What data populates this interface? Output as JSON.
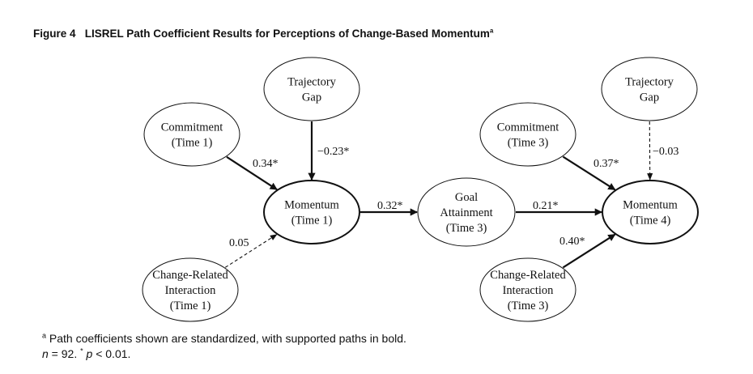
{
  "figure": {
    "label": "Figure 4",
    "title": "LISREL Path Coefficient Results for Perceptions of Change-Based Momentum",
    "title_marker": "a"
  },
  "nodes": [
    {
      "id": "trajectory-gap-1",
      "lines": [
        "Trajectory",
        "Gap"
      ]
    },
    {
      "id": "commitment-time-1",
      "lines": [
        "Commitment",
        "(Time 1)"
      ]
    },
    {
      "id": "momentum-time-1",
      "lines": [
        "Momentum",
        "(Time 1)"
      ]
    },
    {
      "id": "change-interaction-time-1",
      "lines": [
        "Change-Related",
        "Interaction",
        "(Time 1)"
      ]
    },
    {
      "id": "goal-attainment-time-3",
      "lines": [
        "Goal",
        "Attainment",
        "(Time 3)"
      ]
    },
    {
      "id": "trajectory-gap-2",
      "lines": [
        "Trajectory",
        "Gap"
      ]
    },
    {
      "id": "commitment-time-3",
      "lines": [
        "Commitment",
        "(Time 3)"
      ]
    },
    {
      "id": "momentum-time-4",
      "lines": [
        "Momentum",
        "(Time 4)"
      ]
    },
    {
      "id": "change-interaction-time-3",
      "lines": [
        "Change-Related",
        "Interaction",
        "(Time 3)"
      ]
    }
  ],
  "paths": [
    {
      "from": "commitment-time-1",
      "to": "momentum-time-1",
      "coefficient": "0.34*",
      "style": "bold"
    },
    {
      "from": "trajectory-gap-1",
      "to": "momentum-time-1",
      "coefficient": "−0.23*",
      "style": "bold"
    },
    {
      "from": "change-interaction-time-1",
      "to": "momentum-time-1",
      "coefficient": "0.05",
      "style": "dashed"
    },
    {
      "from": "momentum-time-1",
      "to": "goal-attainment-time-3",
      "coefficient": "0.32*",
      "style": "bold"
    },
    {
      "from": "goal-attainment-time-3",
      "to": "momentum-time-4",
      "coefficient": "0.21*",
      "style": "bold"
    },
    {
      "from": "commitment-time-3",
      "to": "momentum-time-4",
      "coefficient": "0.37*",
      "style": "bold"
    },
    {
      "from": "trajectory-gap-2",
      "to": "momentum-time-4",
      "coefficient": "−0.03",
      "style": "dashed"
    },
    {
      "from": "change-interaction-time-3",
      "to": "momentum-time-4",
      "coefficient": "0.40*",
      "style": "bold"
    }
  ],
  "footnotes": {
    "marker": "a",
    "line1": "Path coefficients shown are standardized, with supported paths in bold.",
    "n_symbol": "n",
    "n_value": " = 92. ",
    "star": "*",
    "p_symbol": "p",
    "p_value": " < 0.01."
  },
  "colors": {
    "ink": "#111111",
    "background": "#ffffff"
  }
}
